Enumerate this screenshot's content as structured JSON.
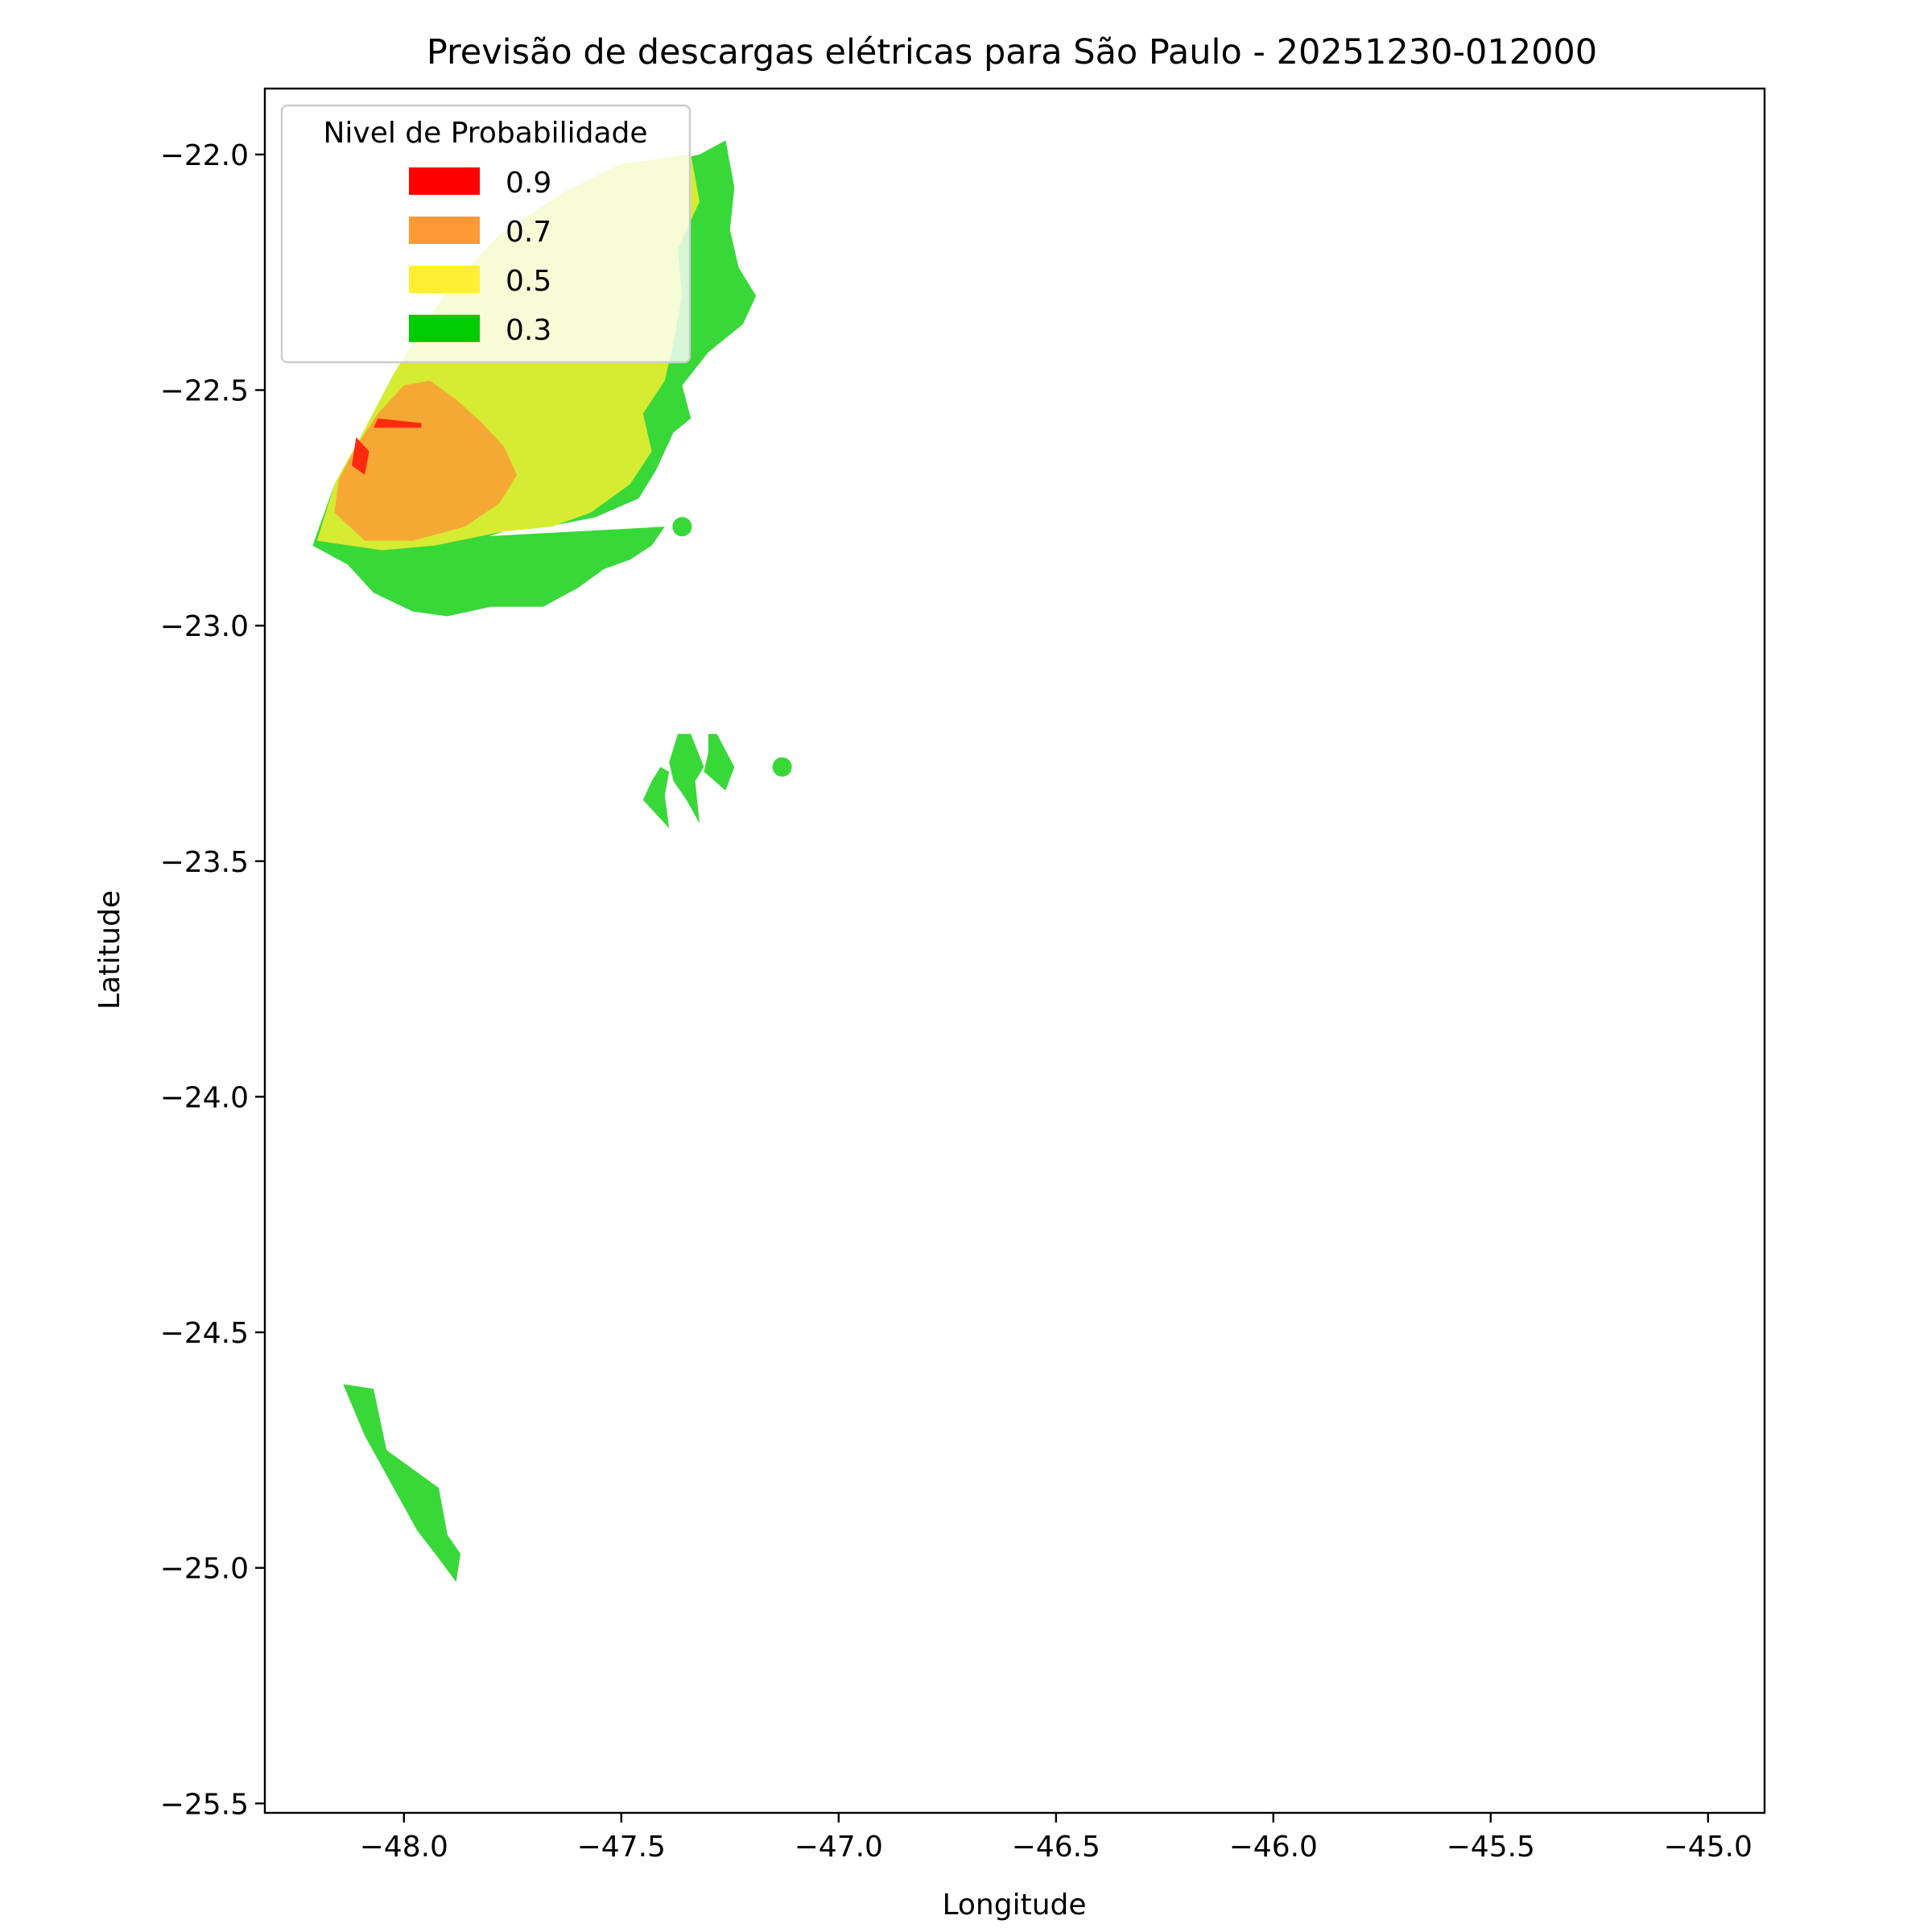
{
  "chart_data": {
    "type": "contour-map",
    "title": "Previsão de descargas elétricas para São Paulo - 20251230-012000",
    "xlabel": "Longitude",
    "ylabel": "Latitude",
    "xlim": [
      -48.32,
      -44.87
    ],
    "ylim": [
      -25.52,
      -21.86
    ],
    "xticks": [
      -48.0,
      -47.5,
      -47.0,
      -46.5,
      -46.0,
      -45.5,
      -45.0
    ],
    "xtick_labels": [
      "−48.0",
      "−47.5",
      "−47.0",
      "−46.5",
      "−46.0",
      "−45.5",
      "−45.0"
    ],
    "yticks": [
      -22.0,
      -22.5,
      -23.0,
      -23.5,
      -24.0,
      -24.5,
      -25.0,
      -25.5
    ],
    "ytick_labels": [
      "−22.0",
      "−22.5",
      "−23.0",
      "−23.5",
      "−24.0",
      "−24.5",
      "−25.0",
      "−25.5"
    ],
    "grid": false,
    "legend": {
      "title": "Nivel de Probabilidade",
      "placement": "top-left",
      "entries": [
        {
          "label": "0.9",
          "color": "#ff0000"
        },
        {
          "label": "0.7",
          "color": "#ff9933"
        },
        {
          "label": "0.5",
          "color": "#ffee33"
        },
        {
          "label": "0.3",
          "color": "#00cc00"
        }
      ]
    },
    "fill_colors": {
      "0.3": "#38d838",
      "0.5": "#d6ec33",
      "0.7": "#f5a833",
      "0.9": "#ff2a10"
    },
    "regions": [
      {
        "level": "0.3",
        "name": "north-cluster",
        "lonlat": [
          [
            -48.21,
            -22.83
          ],
          [
            -48.1,
            -22.85
          ],
          [
            -47.99,
            -22.84
          ],
          [
            -47.87,
            -22.83
          ],
          [
            -47.77,
            -22.8
          ],
          [
            -47.67,
            -22.79
          ],
          [
            -47.56,
            -22.77
          ],
          [
            -47.46,
            -22.73
          ],
          [
            -47.42,
            -22.67
          ],
          [
            -47.38,
            -22.59
          ],
          [
            -47.34,
            -22.56
          ],
          [
            -47.36,
            -22.49
          ],
          [
            -47.3,
            -22.42
          ],
          [
            -47.22,
            -22.36
          ],
          [
            -47.19,
            -22.3
          ],
          [
            -47.23,
            -22.24
          ],
          [
            -47.25,
            -22.16
          ],
          [
            -47.24,
            -22.07
          ],
          [
            -47.26,
            -21.97
          ],
          [
            -47.32,
            -22.0
          ],
          [
            -47.37,
            -22.01
          ],
          [
            -47.5,
            -22.02
          ],
          [
            -47.63,
            -22.08
          ],
          [
            -47.78,
            -22.17
          ],
          [
            -47.9,
            -22.29
          ],
          [
            -48.02,
            -22.46
          ],
          [
            -48.1,
            -22.6
          ],
          [
            -48.16,
            -22.7
          ],
          [
            -48.21,
            -22.83
          ],
          [
            -48.13,
            -22.87
          ],
          [
            -48.07,
            -22.93
          ],
          [
            -47.98,
            -22.97
          ],
          [
            -47.9,
            -22.98
          ],
          [
            -47.8,
            -22.96
          ],
          [
            -47.68,
            -22.96
          ],
          [
            -47.6,
            -22.92
          ],
          [
            -47.54,
            -22.88
          ],
          [
            -47.48,
            -22.86
          ],
          [
            -47.43,
            -22.83
          ],
          [
            -47.4,
            -22.79
          ]
        ]
      },
      {
        "level": "0.5",
        "name": "north-cluster-inner",
        "lonlat": [
          [
            -48.2,
            -22.82
          ],
          [
            -48.05,
            -22.84
          ],
          [
            -47.93,
            -22.83
          ],
          [
            -47.77,
            -22.8
          ],
          [
            -47.66,
            -22.79
          ],
          [
            -47.57,
            -22.76
          ],
          [
            -47.48,
            -22.7
          ],
          [
            -47.43,
            -22.63
          ],
          [
            -47.45,
            -22.55
          ],
          [
            -47.4,
            -22.48
          ],
          [
            -47.38,
            -22.4
          ],
          [
            -47.36,
            -22.3
          ],
          [
            -47.37,
            -22.2
          ],
          [
            -47.32,
            -22.1
          ],
          [
            -47.34,
            -22.0
          ],
          [
            -47.5,
            -22.02
          ],
          [
            -47.63,
            -22.08
          ],
          [
            -47.78,
            -22.17
          ],
          [
            -47.9,
            -22.29
          ],
          [
            -48.02,
            -22.46
          ],
          [
            -48.1,
            -22.6
          ],
          [
            -48.16,
            -22.7
          ]
        ]
      },
      {
        "level": "0.7",
        "name": "north-cluster-core",
        "lonlat": [
          [
            -48.16,
            -22.76
          ],
          [
            -48.09,
            -22.82
          ],
          [
            -47.98,
            -22.82
          ],
          [
            -47.86,
            -22.79
          ],
          [
            -47.78,
            -22.74
          ],
          [
            -47.74,
            -22.68
          ],
          [
            -47.77,
            -22.62
          ],
          [
            -47.82,
            -22.57
          ],
          [
            -47.88,
            -22.52
          ],
          [
            -47.94,
            -22.48
          ],
          [
            -48.0,
            -22.49
          ],
          [
            -48.06,
            -22.55
          ],
          [
            -48.11,
            -22.62
          ],
          [
            -48.15,
            -22.69
          ]
        ]
      },
      {
        "level": "0.9",
        "name": "north-cluster-peak-1",
        "lonlat": [
          [
            -48.11,
            -22.6
          ],
          [
            -48.08,
            -22.63
          ],
          [
            -48.09,
            -22.68
          ],
          [
            -48.12,
            -22.66
          ]
        ]
      },
      {
        "level": "0.9",
        "name": "north-cluster-peak-2",
        "lonlat": [
          [
            -48.06,
            -22.56
          ],
          [
            -47.96,
            -22.57
          ],
          [
            -47.96,
            -22.58
          ],
          [
            -48.07,
            -22.58
          ]
        ]
      },
      {
        "level": "0.3",
        "name": "central-cell-1",
        "lonlat": [
          [
            -47.45,
            -23.37
          ],
          [
            -47.43,
            -23.33
          ],
          [
            -47.41,
            -23.3
          ],
          [
            -47.39,
            -23.31
          ],
          [
            -47.4,
            -23.36
          ],
          [
            -47.39,
            -23.43
          ]
        ]
      },
      {
        "level": "0.3",
        "name": "central-cell-2",
        "lonlat": [
          [
            -47.37,
            -23.23
          ],
          [
            -47.34,
            -23.23
          ],
          [
            -47.31,
            -23.3
          ],
          [
            -47.33,
            -23.33
          ],
          [
            -47.32,
            -23.42
          ],
          [
            -47.35,
            -23.37
          ],
          [
            -47.38,
            -23.33
          ],
          [
            -47.39,
            -23.29
          ]
        ]
      },
      {
        "level": "0.3",
        "name": "central-cell-3",
        "lonlat": [
          [
            -47.3,
            -23.23
          ],
          [
            -47.28,
            -23.23
          ],
          [
            -47.24,
            -23.3
          ],
          [
            -47.26,
            -23.35
          ],
          [
            -47.31,
            -23.31
          ],
          [
            -47.3,
            -23.27
          ]
        ]
      },
      {
        "level": "0.3",
        "name": "south-cell",
        "lonlat": [
          [
            -48.14,
            -24.61
          ],
          [
            -48.07,
            -24.62
          ],
          [
            -48.04,
            -24.75
          ],
          [
            -47.92,
            -24.83
          ],
          [
            -47.9,
            -24.93
          ],
          [
            -47.87,
            -24.97
          ],
          [
            -47.88,
            -25.03
          ],
          [
            -47.84,
            -25.08
          ],
          [
            -47.92,
            -24.98
          ],
          [
            -47.97,
            -24.92
          ],
          [
            -48.03,
            -24.82
          ],
          [
            -48.09,
            -24.72
          ]
        ]
      }
    ],
    "points": [
      {
        "level": "0.3",
        "lon": -47.36,
        "lat": -22.79
      },
      {
        "level": "0.3",
        "lon": -47.13,
        "lat": -23.3
      }
    ]
  }
}
